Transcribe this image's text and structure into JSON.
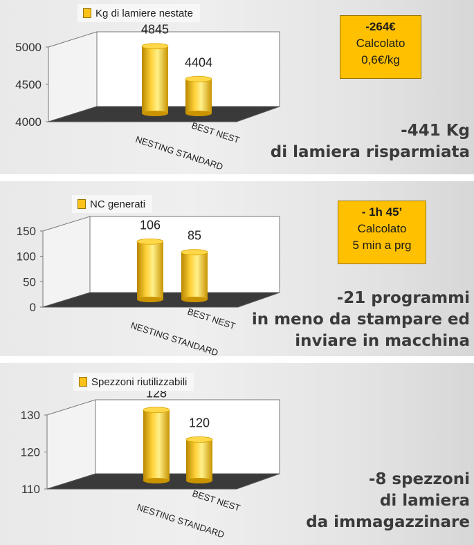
{
  "colors": {
    "bar": "#fdc21a",
    "bar_dark": "#c99400",
    "floor": "#3a3a3a",
    "callout": "#ffc000"
  },
  "panels": [
    {
      "legend": "Kg di lamiere nestate",
      "callout": [
        "-264€",
        "Calcolato",
        "0,6€/kg"
      ],
      "summary": [
        "-441 Kg",
        "di lamiera risparmiata"
      ]
    },
    {
      "legend": "NC generati",
      "callout": [
        "- 1h 45’",
        "Calcolato",
        "5 min a prg"
      ],
      "summary": [
        "-21 programmi",
        "in meno da stampare ed",
        "inviare in macchina"
      ]
    },
    {
      "legend": "Spezzoni riutilizzabili",
      "callout": [],
      "summary": [
        "-8 spezzoni",
        "di lamiera",
        "da immagazzinare"
      ]
    }
  ],
  "chart_data": [
    {
      "type": "bar",
      "categories": [
        "NESTING STANDARD",
        "BEST NEST"
      ],
      "series": [
        {
          "name": "Kg di lamiere nestate",
          "values": [
            4845,
            4404
          ]
        }
      ],
      "yticks": [
        4000,
        4500,
        5000
      ],
      "ylim": [
        4000,
        5000
      ],
      "grid": false,
      "legend_position": "top-left"
    },
    {
      "type": "bar",
      "categories": [
        "NESTING STANDARD",
        "BEST NEST"
      ],
      "series": [
        {
          "name": "NC generati",
          "values": [
            106,
            85
          ]
        }
      ],
      "yticks": [
        0,
        50,
        100,
        150
      ],
      "ylim": [
        0,
        150
      ],
      "grid": false,
      "legend_position": "top-left"
    },
    {
      "type": "bar",
      "categories": [
        "NESTING STANDARD",
        "BEST NEST"
      ],
      "series": [
        {
          "name": "Spezzoni riutilizzabili",
          "values": [
            128,
            120
          ]
        }
      ],
      "yticks": [
        110,
        120,
        130
      ],
      "ylim": [
        110,
        130
      ],
      "grid": false,
      "legend_position": "top-left"
    }
  ]
}
